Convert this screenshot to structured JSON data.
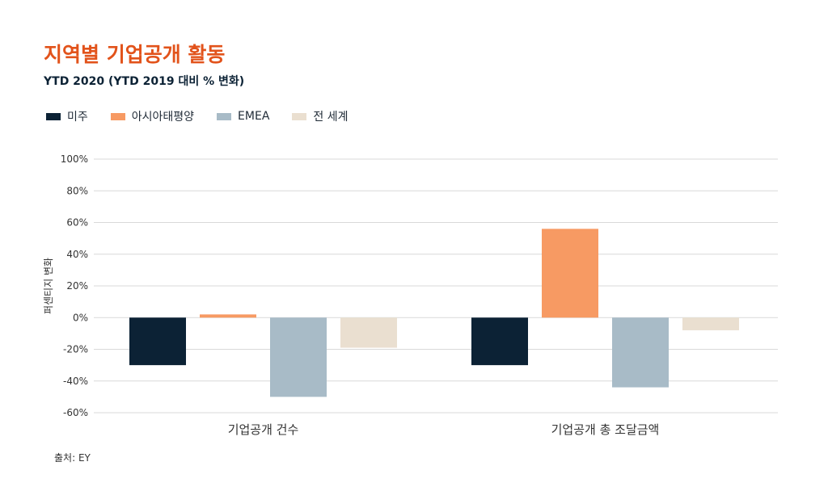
{
  "source_note": "출처: EY",
  "chart_data": {
    "type": "bar",
    "title": "지역별 기업공개 활동",
    "subtitle": "YTD 2020 (YTD 2019 대비 % 변화)",
    "ylabel": "퍼센티지 변화",
    "xlabel": "",
    "ylim": [
      -60,
      100
    ],
    "yticks": [
      100,
      80,
      60,
      40,
      20,
      0,
      -20,
      -40,
      -60
    ],
    "ytick_labels": [
      "100%",
      "80%",
      "60%",
      "40%",
      "20%",
      "0%",
      "-20%",
      "-40%",
      "-60%"
    ],
    "categories": [
      "기업공개 건수",
      "기업공개 총 조달금액"
    ],
    "legend_position": "top-left",
    "grid": true,
    "series": [
      {
        "name": "미주",
        "color": "#0c2235",
        "values": [
          -30,
          -30
        ]
      },
      {
        "name": "아시아태평양",
        "color": "#f79a63",
        "values": [
          2,
          56
        ]
      },
      {
        "name": "EMEA",
        "color": "#a8bbc7",
        "values": [
          -50,
          -44
        ]
      },
      {
        "name": "전 세계",
        "color": "#eadfd0",
        "values": [
          -19,
          -8
        ]
      }
    ]
  }
}
